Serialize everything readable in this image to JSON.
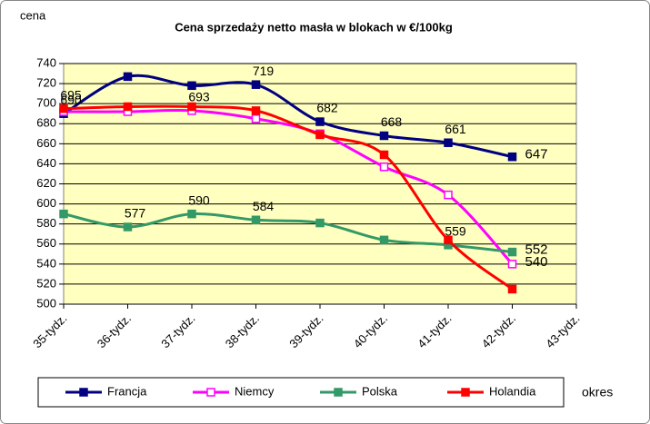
{
  "chart_data": {
    "type": "line",
    "title": "Cena sprzedaży netto masła  w blokach  w €/100kg",
    "y_label": "cena",
    "x_label": "okres",
    "categories": [
      "35-tydz.",
      "36-tydz.",
      "37-tydz.",
      "38-tydz.",
      "39-tydz.",
      "40-tydz.",
      "41-tydz.",
      "42-tydz.",
      "43-tydz."
    ],
    "ylim": [
      500,
      740
    ],
    "yticks": [
      500,
      520,
      540,
      560,
      580,
      600,
      620,
      640,
      660,
      680,
      700,
      720,
      740
    ],
    "grid": true,
    "legend": "bottom",
    "series": [
      {
        "name": "Francja",
        "color": "#000080",
        "marker": "filled",
        "values": [
          690,
          727,
          718,
          719,
          682,
          668,
          661,
          647,
          null
        ],
        "value_labels": [
          "690",
          null,
          null,
          "719",
          "682",
          "668",
          "661",
          "647",
          null
        ]
      },
      {
        "name": "Niemcy",
        "color": "#ff00ff",
        "marker": "hollow",
        "values": [
          692,
          692,
          693,
          685,
          670,
          637,
          609,
          540,
          null
        ],
        "value_labels": [
          null,
          null,
          "693",
          null,
          null,
          null,
          null,
          "540",
          null
        ]
      },
      {
        "name": "Polska",
        "color": "#339966",
        "marker": "filled",
        "values": [
          590,
          577,
          590,
          584,
          581,
          564,
          559,
          552,
          null
        ],
        "value_labels": [
          null,
          "577",
          "590",
          "584",
          null,
          null,
          "559",
          "552",
          null
        ]
      },
      {
        "name": "Holandia",
        "color": "#ff0000",
        "marker": "filled",
        "values": [
          695,
          697,
          697,
          693,
          669,
          649,
          564,
          515,
          null
        ],
        "value_labels": [
          "695",
          null,
          null,
          null,
          null,
          null,
          null,
          null,
          null
        ]
      }
    ]
  }
}
